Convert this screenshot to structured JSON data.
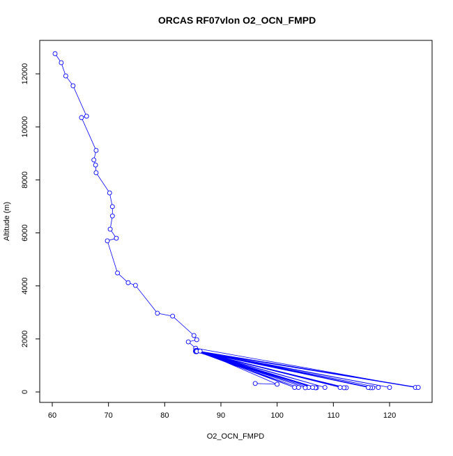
{
  "chart_data": {
    "type": "line",
    "title": "ORCAS RF07vlon O2_OCN_FMPD",
    "x_label": "O2_OCN_FMPD",
    "y_label": "Altitude (m)",
    "color": "#0000ff",
    "x": [
      60.5,
      61.6,
      62.4,
      63.7,
      66.1,
      65.2,
      67.8,
      67.4,
      67.7,
      67.8,
      70.2,
      70.7,
      70.7,
      70.3,
      71.4,
      69.8,
      71.6,
      73.5,
      74.8,
      78.7,
      81.4,
      85.2,
      85.7,
      84.2,
      85.5,
      124.6,
      85.6,
      125.1,
      85.5,
      120,
      85.7,
      118,
      85.6,
      117,
      85.5,
      116.6,
      85.7,
      116.2,
      85.6,
      112.3,
      85.5,
      111.9,
      85.6,
      111.2,
      85.7,
      108.5,
      85.6,
      107,
      85.5,
      106.8,
      85.6,
      106.3,
      85.7,
      105.6,
      85.5,
      105,
      85.6,
      103.8,
      85.7,
      103.1,
      86.3,
      100,
      96.1
    ],
    "y": [
      12760,
      12420,
      11920,
      11550,
      10400,
      10350,
      9110,
      8750,
      8560,
      8270,
      7510,
      6990,
      6640,
      6140,
      5800,
      5700,
      4490,
      4120,
      4020,
      2970,
      2860,
      2130,
      1970,
      1890,
      1650,
      170,
      1530,
      170,
      1560,
      170,
      1520,
      170,
      1550,
      160,
      1530,
      160,
      1560,
      170,
      1540,
      160,
      1520,
      160,
      1550,
      170,
      1530,
      170,
      1560,
      160,
      1540,
      160,
      1520,
      170,
      1550,
      170,
      1530,
      160,
      1550,
      170,
      1530,
      170,
      1540,
      290,
      320
    ],
    "xlim": [
      57.77,
      127.56
    ],
    "ylim": [
      -394,
      13262
    ],
    "xticks": [
      60,
      70,
      80,
      90,
      100,
      110,
      120
    ],
    "yticks": [
      0,
      2000,
      4000,
      6000,
      8000,
      10000,
      12000
    ]
  }
}
